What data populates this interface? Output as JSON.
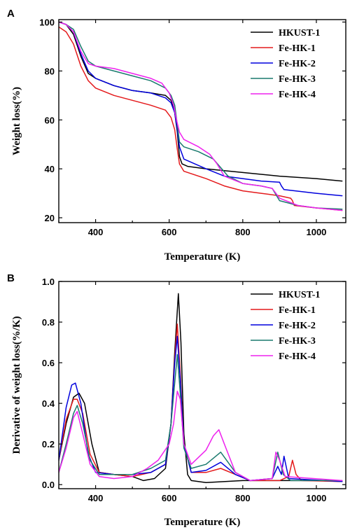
{
  "chart_data": [
    {
      "panel": "A",
      "type": "line",
      "xlabel": "Temperature (K)",
      "ylabel": "Weight loss(%)",
      "xlim": [
        300,
        1080
      ],
      "ylim": [
        18,
        101
      ],
      "xticks": [
        400,
        600,
        800,
        1000
      ],
      "yticks": [
        20,
        40,
        60,
        80,
        100
      ],
      "legend_position": "top-right",
      "series": [
        {
          "name": "HKUST-1",
          "color": "#000000",
          "points": [
            [
              300,
              100
            ],
            [
              320,
              99
            ],
            [
              340,
              95
            ],
            [
              360,
              86
            ],
            [
              380,
              79
            ],
            [
              400,
              77
            ],
            [
              450,
              74
            ],
            [
              500,
              72
            ],
            [
              550,
              71
            ],
            [
              590,
              70
            ],
            [
              605,
              68
            ],
            [
              615,
              63
            ],
            [
              622,
              55
            ],
            [
              628,
              45
            ],
            [
              635,
              42
            ],
            [
              650,
              41
            ],
            [
              700,
              40
            ],
            [
              800,
              38.5
            ],
            [
              900,
              37
            ],
            [
              1000,
              36
            ],
            [
              1070,
              35
            ]
          ]
        },
        {
          "name": "Fe-HK-1",
          "color": "#e41a1c",
          "points": [
            [
              300,
              98
            ],
            [
              320,
              96
            ],
            [
              340,
              91
            ],
            [
              360,
              82
            ],
            [
              380,
              76
            ],
            [
              400,
              73
            ],
            [
              450,
              70
            ],
            [
              500,
              68
            ],
            [
              550,
              66
            ],
            [
              590,
              64
            ],
            [
              605,
              61
            ],
            [
              615,
              56
            ],
            [
              622,
              48
            ],
            [
              628,
              42
            ],
            [
              640,
              39
            ],
            [
              700,
              36
            ],
            [
              750,
              33
            ],
            [
              800,
              31
            ],
            [
              850,
              30
            ],
            [
              900,
              29
            ],
            [
              930,
              28
            ],
            [
              935,
              27
            ],
            [
              940,
              25
            ],
            [
              1000,
              24
            ],
            [
              1070,
              23
            ]
          ]
        },
        {
          "name": "Fe-HK-2",
          "color": "#0000dd",
          "points": [
            [
              300,
              100
            ],
            [
              320,
              99
            ],
            [
              340,
              96
            ],
            [
              360,
              87
            ],
            [
              380,
              80
            ],
            [
              400,
              77
            ],
            [
              450,
              74
            ],
            [
              500,
              72
            ],
            [
              550,
              71
            ],
            [
              590,
              69
            ],
            [
              605,
              67
            ],
            [
              615,
              63
            ],
            [
              622,
              56
            ],
            [
              628,
              49
            ],
            [
              640,
              44
            ],
            [
              700,
              40
            ],
            [
              750,
              37
            ],
            [
              800,
              36
            ],
            [
              850,
              35
            ],
            [
              900,
              34.5
            ],
            [
              905,
              33
            ],
            [
              912,
              31.5
            ],
            [
              1000,
              30
            ],
            [
              1070,
              29
            ]
          ]
        },
        {
          "name": "Fe-HK-3",
          "color": "#1a7a6e",
          "points": [
            [
              300,
              100
            ],
            [
              320,
              99
            ],
            [
              340,
              97
            ],
            [
              360,
              90
            ],
            [
              380,
              84
            ],
            [
              400,
              82
            ],
            [
              450,
              80
            ],
            [
              500,
              78
            ],
            [
              550,
              76
            ],
            [
              590,
              73
            ],
            [
              605,
              70
            ],
            [
              615,
              66
            ],
            [
              622,
              58
            ],
            [
              628,
              51
            ],
            [
              640,
              49
            ],
            [
              680,
              47
            ],
            [
              720,
              44
            ],
            [
              760,
              37
            ],
            [
              800,
              34
            ],
            [
              850,
              33
            ],
            [
              880,
              32
            ],
            [
              900,
              27
            ],
            [
              950,
              25
            ],
            [
              1000,
              24
            ],
            [
              1070,
              23.5
            ]
          ]
        },
        {
          "name": "Fe-HK-4",
          "color": "#ee22ee",
          "points": [
            [
              300,
              100
            ],
            [
              320,
              99
            ],
            [
              340,
              96
            ],
            [
              360,
              88
            ],
            [
              380,
              83
            ],
            [
              400,
              82
            ],
            [
              450,
              81
            ],
            [
              500,
              79
            ],
            [
              550,
              77
            ],
            [
              580,
              75
            ],
            [
              600,
              71
            ],
            [
              612,
              66
            ],
            [
              620,
              60
            ],
            [
              628,
              55
            ],
            [
              640,
              52
            ],
            [
              680,
              49
            ],
            [
              710,
              46
            ],
            [
              730,
              42
            ],
            [
              750,
              37
            ],
            [
              800,
              34
            ],
            [
              850,
              33
            ],
            [
              880,
              32
            ],
            [
              900,
              28
            ],
            [
              950,
              25
            ],
            [
              1000,
              24
            ],
            [
              1070,
              23
            ]
          ]
        }
      ]
    },
    {
      "panel": "B",
      "type": "line",
      "xlabel": "Temperature (K)",
      "ylabel": "Derivative of weight loss(%/K)",
      "xlim": [
        300,
        1080
      ],
      "ylim": [
        -0.02,
        1.0
      ],
      "xticks": [
        400,
        600,
        800,
        1000
      ],
      "yticks": [
        0.0,
        0.2,
        0.4,
        0.6,
        0.8,
        1.0
      ],
      "legend_position": "top-right",
      "series": [
        {
          "name": "HKUST-1",
          "color": "#000000",
          "points": [
            [
              300,
              0.12
            ],
            [
              320,
              0.3
            ],
            [
              340,
              0.43
            ],
            [
              355,
              0.45
            ],
            [
              370,
              0.4
            ],
            [
              390,
              0.2
            ],
            [
              410,
              0.06
            ],
            [
              450,
              0.05
            ],
            [
              500,
              0.04
            ],
            [
              530,
              0.02
            ],
            [
              560,
              0.03
            ],
            [
              590,
              0.08
            ],
            [
              605,
              0.3
            ],
            [
              615,
              0.65
            ],
            [
              625,
              0.94
            ],
            [
              632,
              0.7
            ],
            [
              640,
              0.25
            ],
            [
              650,
              0.05
            ],
            [
              660,
              0.02
            ],
            [
              700,
              0.01
            ],
            [
              800,
              0.02
            ],
            [
              900,
              0.02
            ],
            [
              1000,
              0.02
            ],
            [
              1070,
              0.015
            ]
          ]
        },
        {
          "name": "Fe-HK-1",
          "color": "#e41a1c",
          "points": [
            [
              300,
              0.12
            ],
            [
              320,
              0.32
            ],
            [
              340,
              0.42
            ],
            [
              350,
              0.42
            ],
            [
              365,
              0.35
            ],
            [
              385,
              0.15
            ],
            [
              410,
              0.06
            ],
            [
              450,
              0.05
            ],
            [
              500,
              0.04
            ],
            [
              550,
              0.06
            ],
            [
              590,
              0.1
            ],
            [
              605,
              0.3
            ],
            [
              615,
              0.62
            ],
            [
              622,
              0.79
            ],
            [
              630,
              0.55
            ],
            [
              640,
              0.2
            ],
            [
              660,
              0.06
            ],
            [
              700,
              0.06
            ],
            [
              740,
              0.08
            ],
            [
              780,
              0.05
            ],
            [
              820,
              0.02
            ],
            [
              900,
              0.02
            ],
            [
              925,
              0.04
            ],
            [
              935,
              0.12
            ],
            [
              945,
              0.05
            ],
            [
              960,
              0.02
            ],
            [
              1070,
              0.015
            ]
          ]
        },
        {
          "name": "Fe-HK-2",
          "color": "#0000dd",
          "points": [
            [
              300,
              0.12
            ],
            [
              320,
              0.38
            ],
            [
              335,
              0.49
            ],
            [
              345,
              0.5
            ],
            [
              360,
              0.4
            ],
            [
              380,
              0.15
            ],
            [
              400,
              0.06
            ],
            [
              450,
              0.05
            ],
            [
              500,
              0.05
            ],
            [
              550,
              0.06
            ],
            [
              590,
              0.1
            ],
            [
              605,
              0.3
            ],
            [
              615,
              0.6
            ],
            [
              622,
              0.73
            ],
            [
              630,
              0.52
            ],
            [
              640,
              0.2
            ],
            [
              660,
              0.06
            ],
            [
              700,
              0.07
            ],
            [
              740,
              0.11
            ],
            [
              780,
              0.05
            ],
            [
              820,
              0.02
            ],
            [
              880,
              0.03
            ],
            [
              895,
              0.09
            ],
            [
              905,
              0.05
            ],
            [
              912,
              0.14
            ],
            [
              925,
              0.03
            ],
            [
              1070,
              0.015
            ]
          ]
        },
        {
          "name": "Fe-HK-3",
          "color": "#1a7a6e",
          "points": [
            [
              300,
              0.06
            ],
            [
              320,
              0.2
            ],
            [
              340,
              0.35
            ],
            [
              350,
              0.39
            ],
            [
              365,
              0.3
            ],
            [
              385,
              0.12
            ],
            [
              410,
              0.05
            ],
            [
              450,
              0.05
            ],
            [
              500,
              0.05
            ],
            [
              550,
              0.08
            ],
            [
              590,
              0.12
            ],
            [
              605,
              0.3
            ],
            [
              615,
              0.5
            ],
            [
              622,
              0.64
            ],
            [
              630,
              0.45
            ],
            [
              640,
              0.18
            ],
            [
              660,
              0.08
            ],
            [
              700,
              0.1
            ],
            [
              740,
              0.16
            ],
            [
              780,
              0.06
            ],
            [
              820,
              0.02
            ],
            [
              880,
              0.03
            ],
            [
              895,
              0.16
            ],
            [
              910,
              0.05
            ],
            [
              930,
              0.02
            ],
            [
              1070,
              0.02
            ]
          ]
        },
        {
          "name": "Fe-HK-4",
          "color": "#ee22ee",
          "points": [
            [
              300,
              0.06
            ],
            [
              320,
              0.18
            ],
            [
              340,
              0.33
            ],
            [
              350,
              0.36
            ],
            [
              365,
              0.25
            ],
            [
              385,
              0.1
            ],
            [
              410,
              0.04
            ],
            [
              450,
              0.03
            ],
            [
              500,
              0.04
            ],
            [
              540,
              0.08
            ],
            [
              570,
              0.12
            ],
            [
              600,
              0.2
            ],
            [
              612,
              0.3
            ],
            [
              622,
              0.46
            ],
            [
              630,
              0.42
            ],
            [
              640,
              0.2
            ],
            [
              660,
              0.1
            ],
            [
              700,
              0.17
            ],
            [
              720,
              0.24
            ],
            [
              735,
              0.27
            ],
            [
              750,
              0.2
            ],
            [
              780,
              0.06
            ],
            [
              820,
              0.02
            ],
            [
              880,
              0.03
            ],
            [
              890,
              0.16
            ],
            [
              900,
              0.12
            ],
            [
              915,
              0.04
            ],
            [
              1070,
              0.02
            ]
          ]
        }
      ]
    }
  ]
}
